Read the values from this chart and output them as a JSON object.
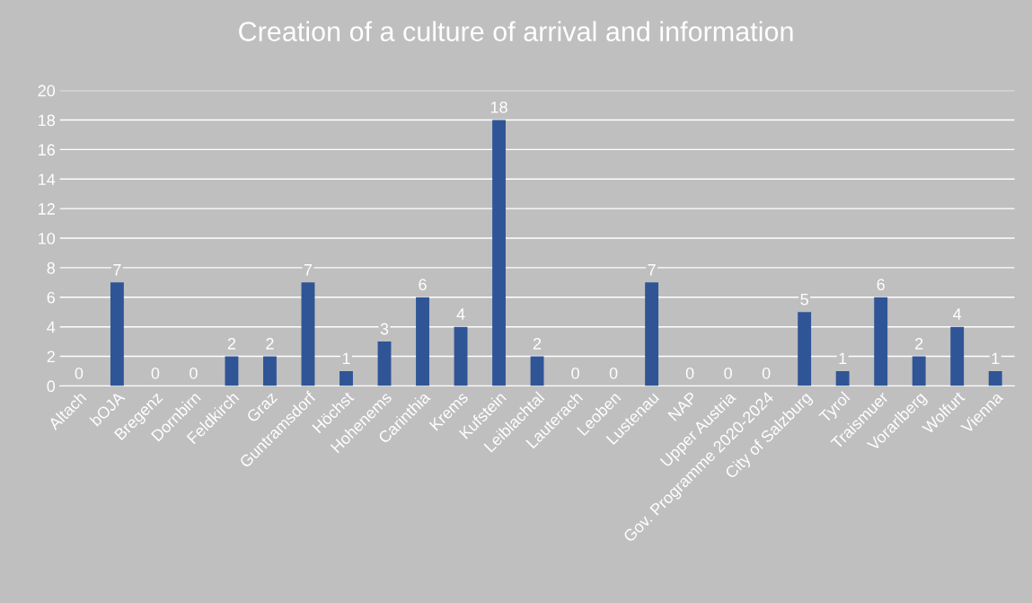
{
  "chart_data": {
    "type": "bar",
    "title": "Creation of a culture of arrival and information",
    "categories": [
      "Altach",
      "bOJA",
      "Bregenz",
      "Dornbirn",
      "Feldkirch",
      "Graz",
      "Guntramsdorf",
      "Höchst",
      "Hohenems",
      "Carinthia",
      "Krems",
      "Kufstein",
      "Leiblachtal",
      "Lauterach",
      "Leoben",
      "Lustenau",
      "NAP",
      "Upper Austria",
      "Gov. Programme 2020-2024",
      "City of Salzburg",
      "Tyrol",
      "Traismuer",
      "Vorarlberg",
      "Wolfurt",
      "Vienna"
    ],
    "values": [
      0,
      7,
      0,
      0,
      2,
      2,
      7,
      1,
      3,
      6,
      4,
      18,
      2,
      0,
      0,
      7,
      0,
      0,
      0,
      5,
      1,
      6,
      2,
      4,
      1
    ],
    "color": "#2f5597",
    "ylim": [
      0,
      20
    ],
    "yticks": [
      0,
      2,
      4,
      6,
      8,
      10,
      12,
      14,
      16,
      18,
      20
    ],
    "grid": "y",
    "data_labels": true,
    "legend": false
  }
}
